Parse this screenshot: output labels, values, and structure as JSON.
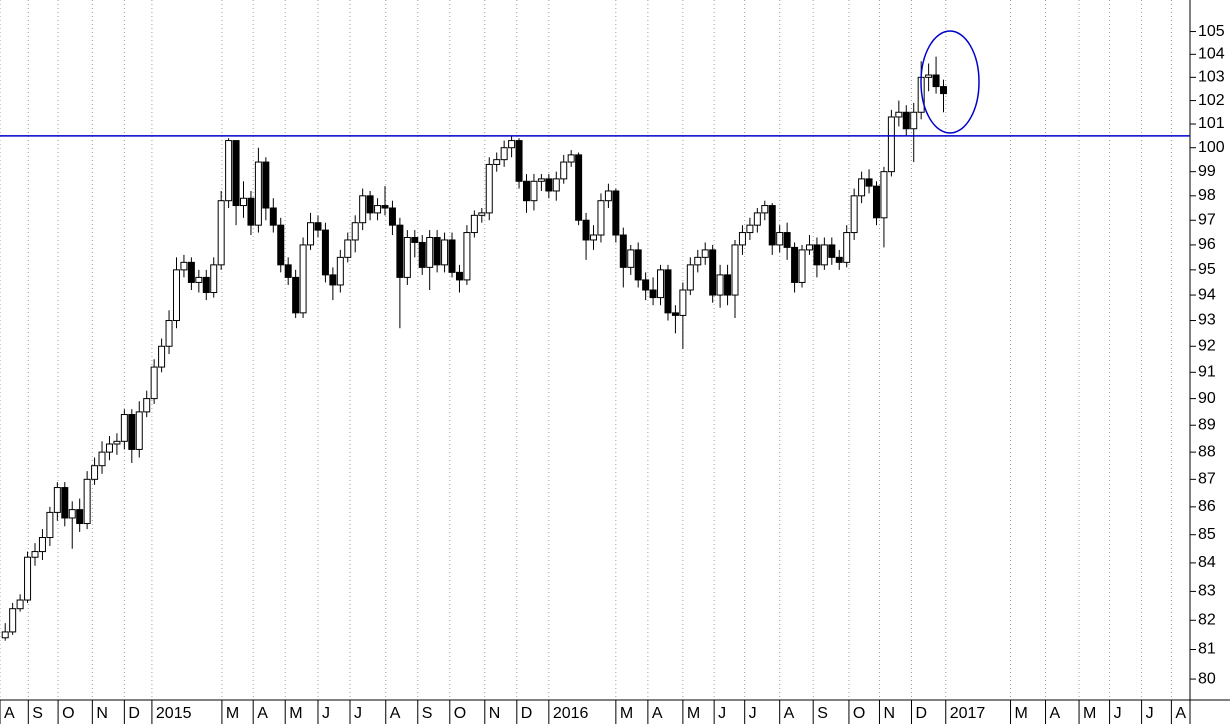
{
  "chart_data": {
    "type": "candlestick",
    "log_scale": true,
    "grid": true,
    "up_color": "#ffffff",
    "down_color": "#000000",
    "categories": [
      null,
      null,
      null,
      null,
      null,
      null,
      null,
      null,
      null,
      null,
      null,
      null,
      null,
      null,
      null,
      null,
      null,
      null,
      null,
      null,
      null,
      null,
      null,
      null,
      null,
      null,
      null,
      null,
      null,
      null,
      null,
      null,
      null,
      null,
      null,
      null,
      null,
      null,
      null,
      null,
      null,
      null,
      null,
      null,
      null,
      null,
      null,
      null,
      null,
      null,
      null,
      null,
      null,
      null,
      null,
      null,
      null,
      null,
      null,
      null,
      null,
      null,
      null,
      null,
      null,
      null,
      null,
      null,
      null,
      null,
      null,
      null,
      null,
      null,
      null,
      null,
      null,
      null,
      null,
      null,
      null,
      null,
      null,
      null,
      null,
      null,
      null,
      null,
      null,
      null,
      null,
      null,
      null,
      null,
      null,
      null,
      null,
      null,
      null,
      null,
      null,
      null,
      null,
      null,
      null,
      null,
      null,
      null,
      null,
      null,
      null,
      null,
      null,
      null,
      null,
      null,
      null,
      null,
      null,
      null,
      null,
      null,
      null,
      null,
      null,
      null,
      null
    ],
    "open": [
      81.4,
      81.6,
      82.4,
      82.7,
      84.2,
      84.4,
      84.9,
      85.8,
      86.7,
      85.6,
      85.9,
      85.4,
      87.0,
      87.5,
      88.0,
      88.3,
      88.4,
      89.4,
      88.1,
      89.5,
      90.0,
      91.2,
      92.0,
      93.0,
      95.0,
      95.3,
      94.5,
      94.7,
      94.1,
      95.2,
      97.8,
      100.3,
      97.6,
      97.9,
      96.8,
      99.4,
      97.5,
      96.8,
      95.2,
      94.7,
      93.3,
      96.0,
      96.9,
      96.6,
      94.8,
      94.4,
      95.5,
      96.2,
      96.9,
      98.0,
      97.3,
      97.6,
      97.5,
      96.8,
      94.7,
      96.3,
      96.1,
      95.1,
      96.3,
      95.2,
      96.2,
      94.9,
      94.6,
      96.5,
      97.2,
      97.3,
      99.3,
      99.5,
      100.0,
      100.3,
      98.6,
      97.8,
      98.6,
      98.7,
      98.2,
      98.7,
      99.4,
      99.7,
      97.0,
      96.2,
      96.4,
      97.8,
      98.2,
      96.4,
      95.1,
      95.8,
      94.6,
      94.2,
      93.9,
      95.0,
      93.3,
      93.2,
      94.2,
      95.2,
      95.5,
      95.8,
      94.0,
      94.8,
      94.0,
      96.0,
      96.5,
      96.8,
      97.3,
      97.6,
      96.0,
      96.5,
      95.9,
      94.5,
      95.8,
      96.0,
      95.2,
      96.0,
      95.5,
      95.3,
      96.5,
      98.0,
      98.7,
      98.4,
      97.1,
      99.0,
      101.3,
      101.5,
      100.8,
      101.5,
      103.0,
      103.1,
      102.6
    ],
    "high": [
      81.9,
      82.6,
      82.9,
      84.4,
      84.7,
      85.2,
      86.0,
      86.9,
      86.9,
      86.2,
      86.3,
      87.3,
      87.8,
      88.4,
      88.6,
      88.7,
      89.6,
      89.6,
      89.9,
      90.3,
      91.5,
      92.3,
      93.4,
      95.5,
      95.6,
      95.5,
      95.0,
      95.0,
      95.5,
      98.2,
      100.4,
      100.3,
      98.6,
      98.2,
      100.0,
      99.6,
      97.9,
      97.1,
      95.5,
      95.0,
      96.3,
      97.3,
      97.2,
      96.9,
      95.1,
      95.8,
      96.5,
      97.2,
      98.3,
      98.2,
      97.9,
      98.4,
      97.8,
      97.1,
      96.6,
      96.6,
      96.4,
      96.6,
      96.6,
      96.5,
      96.5,
      95.2,
      96.8,
      97.4,
      97.5,
      99.6,
      99.8,
      100.3,
      100.5,
      100.4,
      98.9,
      98.9,
      98.9,
      98.9,
      99.0,
      99.7,
      99.9,
      99.8,
      97.3,
      96.8,
      98.1,
      98.5,
      98.3,
      96.7,
      96.0,
      96.1,
      94.9,
      94.7,
      95.2,
      95.2,
      93.6,
      94.5,
      95.5,
      95.8,
      96.1,
      96.0,
      95.2,
      95.2,
      96.2,
      96.8,
      97.1,
      97.5,
      97.8,
      97.7,
      96.8,
      96.9,
      96.1,
      96.0,
      96.4,
      96.3,
      96.3,
      96.3,
      95.8,
      96.8,
      98.3,
      99.0,
      99.1,
      98.6,
      99.2,
      101.6,
      102.0,
      101.8,
      101.9,
      103.7,
      103.6,
      103.9,
      102.9
    ],
    "low": [
      81.3,
      81.5,
      82.3,
      82.6,
      83.9,
      84.1,
      84.6,
      85.5,
      85.3,
      84.5,
      85.1,
      85.2,
      86.8,
      87.2,
      87.7,
      87.9,
      88.1,
      87.6,
      87.8,
      89.3,
      89.8,
      91.0,
      91.7,
      92.7,
      94.7,
      94.2,
      94.1,
      93.8,
      93.9,
      95.0,
      97.5,
      96.8,
      97.1,
      96.4,
      96.5,
      97.0,
      96.5,
      94.9,
      94.4,
      93.1,
      93.1,
      95.8,
      96.3,
      94.5,
      93.8,
      94.1,
      95.3,
      95.7,
      96.6,
      97.0,
      97.0,
      97.2,
      96.4,
      92.7,
      94.4,
      95.5,
      94.8,
      94.2,
      94.9,
      94.9,
      94.7,
      94.1,
      94.4,
      96.3,
      96.9,
      97.0,
      99.0,
      99.2,
      99.6,
      98.3,
      97.3,
      97.4,
      98.2,
      97.9,
      97.8,
      98.5,
      99.2,
      96.8,
      95.4,
      95.8,
      96.1,
      97.5,
      96.1,
      94.3,
      94.8,
      94.3,
      93.8,
      93.6,
      93.6,
      93.0,
      92.5,
      91.9,
      94.0,
      94.9,
      95.2,
      93.7,
      93.5,
      93.6,
      93.1,
      95.6,
      96.2,
      96.5,
      97.0,
      95.6,
      95.7,
      95.4,
      94.1,
      94.3,
      95.6,
      94.7,
      95.0,
      95.2,
      95.0,
      95.1,
      96.2,
      97.7,
      98.1,
      96.8,
      95.9,
      98.8,
      100.9,
      100.5,
      99.4,
      101.2,
      102.4,
      102.3,
      101.5
    ],
    "close": [
      81.6,
      82.4,
      82.7,
      84.2,
      84.4,
      84.9,
      85.8,
      86.7,
      85.6,
      85.9,
      85.4,
      87.0,
      87.5,
      88.0,
      88.3,
      88.4,
      89.4,
      88.1,
      89.5,
      90.0,
      91.2,
      92.0,
      93.0,
      95.0,
      95.3,
      94.5,
      94.7,
      94.1,
      95.2,
      97.8,
      100.3,
      97.6,
      97.9,
      96.8,
      99.4,
      97.5,
      96.8,
      95.2,
      94.7,
      93.3,
      96.0,
      96.9,
      96.6,
      94.8,
      94.4,
      95.5,
      96.2,
      96.9,
      98.0,
      97.3,
      97.6,
      97.5,
      96.8,
      94.7,
      96.3,
      96.1,
      95.1,
      96.3,
      95.2,
      96.2,
      94.9,
      94.6,
      96.5,
      97.2,
      97.3,
      99.3,
      99.5,
      100.0,
      100.3,
      98.6,
      97.8,
      98.6,
      98.7,
      98.2,
      98.7,
      99.4,
      99.7,
      97.0,
      96.2,
      96.4,
      97.8,
      98.2,
      96.4,
      95.1,
      95.8,
      94.6,
      94.2,
      93.9,
      95.0,
      93.3,
      93.2,
      94.2,
      95.2,
      95.5,
      95.8,
      94.0,
      94.8,
      94.0,
      96.0,
      96.5,
      96.8,
      97.3,
      97.6,
      96.0,
      96.5,
      95.9,
      94.5,
      95.8,
      96.0,
      95.2,
      96.0,
      95.5,
      95.3,
      96.5,
      98.0,
      98.7,
      98.4,
      97.1,
      99.0,
      101.3,
      101.5,
      100.8,
      101.5,
      103.0,
      103.1,
      102.6,
      102.3
    ],
    "xlim": [
      -0.7,
      159.1
    ],
    "xticks": [
      {
        "value": -0.7,
        "label": "A"
      },
      {
        "value": 3.1,
        "label": "S"
      },
      {
        "value": 7.1,
        "label": "O"
      },
      {
        "value": 11.7,
        "label": "N"
      },
      {
        "value": 16.0,
        "label": "D"
      },
      {
        "value": 19.7,
        "label": "2015"
      },
      {
        "value": 29.1,
        "label": "M"
      },
      {
        "value": 33.3,
        "label": "A"
      },
      {
        "value": 37.6,
        "label": "M"
      },
      {
        "value": 42.0,
        "label": "J"
      },
      {
        "value": 46.3,
        "label": "J"
      },
      {
        "value": 51.1,
        "label": "A"
      },
      {
        "value": 55.4,
        "label": "S"
      },
      {
        "value": 59.7,
        "label": "O"
      },
      {
        "value": 64.4,
        "label": "N"
      },
      {
        "value": 68.7,
        "label": "D"
      },
      {
        "value": 73.0,
        "label": "2016"
      },
      {
        "value": 82.0,
        "label": "M"
      },
      {
        "value": 86.3,
        "label": "A"
      },
      {
        "value": 91.0,
        "label": "M"
      },
      {
        "value": 95.2,
        "label": "J"
      },
      {
        "value": 99.3,
        "label": "J"
      },
      {
        "value": 104.0,
        "label": "A"
      },
      {
        "value": 108.5,
        "label": "S"
      },
      {
        "value": 113.3,
        "label": "O"
      },
      {
        "value": 117.4,
        "label": "N"
      },
      {
        "value": 121.7,
        "label": "D"
      },
      {
        "value": 126.3,
        "label": "2017"
      },
      {
        "value": 135.0,
        "label": "M"
      },
      {
        "value": 139.7,
        "label": "A"
      },
      {
        "value": 144.2,
        "label": "M"
      },
      {
        "value": 148.3,
        "label": "J"
      },
      {
        "value": 152.6,
        "label": "J"
      },
      {
        "value": 156.6,
        "label": "A"
      }
    ],
    "ylim": [
      79.3,
      106.4
    ],
    "yticks": [
      80,
      81,
      82,
      83,
      84,
      85,
      86,
      87,
      88,
      89,
      90,
      91,
      92,
      93,
      94,
      95,
      96,
      97,
      98,
      99,
      100,
      101,
      102,
      103,
      104,
      105
    ],
    "hline": {
      "value": 100.5,
      "color": "#0000cc"
    }
  }
}
